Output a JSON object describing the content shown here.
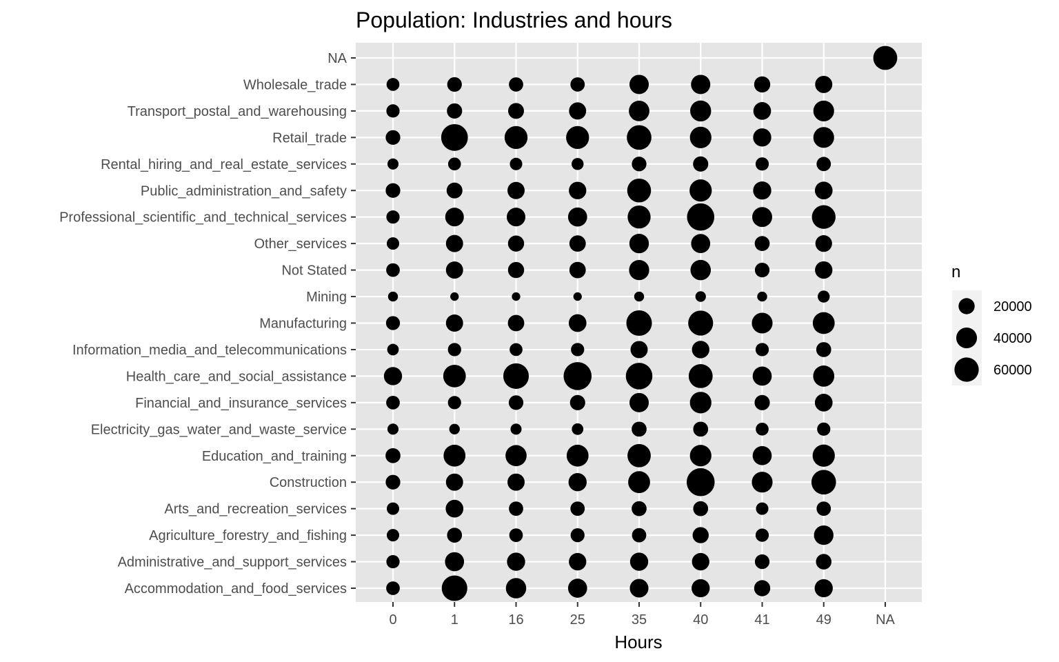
{
  "chart_data": {
    "type": "scatter",
    "title": "Population: Industries and hours",
    "xlabel": "Hours",
    "ylabel": "",
    "x_categories": [
      "0",
      "1",
      "16",
      "25",
      "35",
      "40",
      "41",
      "49",
      "NA"
    ],
    "y_categories": [
      "Accommodation_and_food_services",
      "Administrative_and_support_services",
      "Agriculture_forestry_and_fishing",
      "Arts_and_recreation_services",
      "Construction",
      "Education_and_training",
      "Electricity_gas_water_and_waste_service",
      "Financial_and_insurance_services",
      "Health_care_and_social_assistance",
      "Information_media_and_telecommunications",
      "Manufacturing",
      "Mining",
      "Not Stated",
      "Other_services",
      "Professional_scientific_and_technical_services",
      "Public_administration_and_safety",
      "Rental_hiring_and_real_estate_services",
      "Retail_trade",
      "Transport_postal_and_warehousing",
      "Wholesale_trade",
      "NA"
    ],
    "n_values": [
      [
        12000,
        68000,
        38000,
        32000,
        30000,
        28000,
        20000,
        28000,
        null
      ],
      [
        11000,
        32000,
        28000,
        25000,
        28000,
        25000,
        15000,
        18000,
        null
      ],
      [
        9000,
        16000,
        12000,
        13000,
        14000,
        20000,
        11000,
        34000,
        null
      ],
      [
        9000,
        26000,
        14000,
        14000,
        16000,
        16000,
        9000,
        14000,
        null
      ],
      [
        15000,
        24000,
        24000,
        28000,
        46000,
        85000,
        40000,
        62000,
        null
      ],
      [
        16000,
        46000,
        42000,
        46000,
        54000,
        44000,
        32000,
        48000,
        null
      ],
      [
        6000,
        5000,
        6000,
        7000,
        16000,
        16000,
        10000,
        11000,
        null
      ],
      [
        12000,
        11000,
        15000,
        17000,
        33000,
        44000,
        17000,
        26000,
        null
      ],
      [
        28000,
        50000,
        68000,
        85000,
        75000,
        58000,
        32000,
        42000,
        null
      ],
      [
        7000,
        11000,
        10000,
        11000,
        24000,
        25000,
        11000,
        16000,
        null
      ],
      [
        13000,
        24000,
        21000,
        26000,
        68000,
        64000,
        40000,
        46000,
        null
      ],
      [
        4000,
        2000,
        2000,
        2000,
        4000,
        5000,
        4000,
        8000,
        null
      ],
      [
        12000,
        24000,
        20000,
        21000,
        37000,
        38000,
        15000,
        25000,
        null
      ],
      [
        9000,
        24000,
        20000,
        21000,
        34000,
        32000,
        16000,
        22000,
        null
      ],
      [
        11000,
        30000,
        30000,
        32000,
        52000,
        80000,
        36000,
        56000,
        null
      ],
      [
        15000,
        19000,
        24000,
        25000,
        57000,
        48000,
        28000,
        26000,
        null
      ],
      [
        6000,
        10000,
        9000,
        8000,
        15000,
        17000,
        11000,
        14000,
        null
      ],
      [
        15000,
        76000,
        52000,
        52000,
        62000,
        44000,
        28000,
        40000,
        null
      ],
      [
        11000,
        17000,
        19000,
        24000,
        39000,
        41000,
        26000,
        40000,
        null
      ],
      [
        10000,
        15000,
        14000,
        14000,
        33000,
        33000,
        20000,
        24000,
        null
      ],
      [
        null,
        null,
        null,
        null,
        null,
        null,
        null,
        null,
        58000
      ]
    ],
    "legend": {
      "title": "n",
      "entries": [
        {
          "label": "20000",
          "value": 20000
        },
        {
          "label": "40000",
          "value": 40000
        },
        {
          "label": "60000",
          "value": 60000
        }
      ],
      "position": "right"
    },
    "grid": true,
    "colors": {
      "panel_background": "#e5e5e5",
      "grid": "#ffffff",
      "point": "#000000",
      "tick_label": "#4d4d4d",
      "tick": "#333333"
    }
  }
}
